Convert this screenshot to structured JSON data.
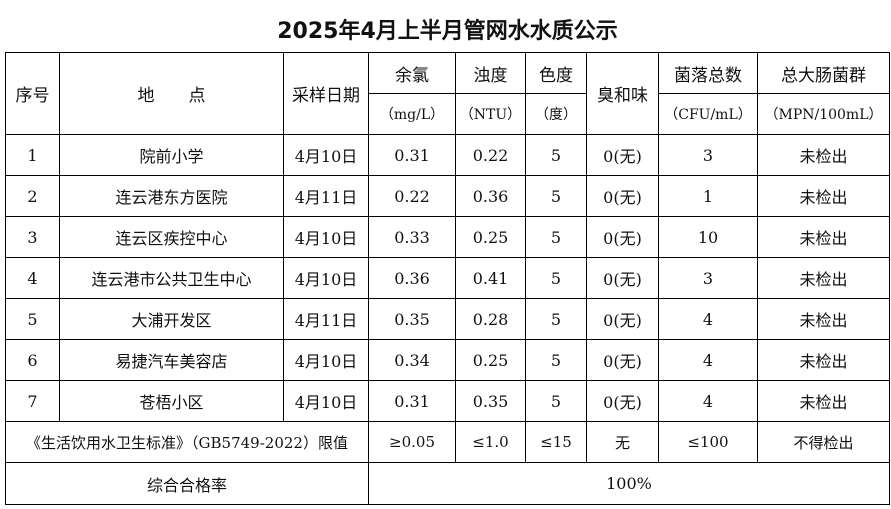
{
  "title": "2025年4月上半月管网水水质公示",
  "headers": {
    "seq": "序号",
    "location": "地　　点",
    "date": "采样日期",
    "chlorine": "余氯",
    "chlorine_unit": "（mg/L）",
    "turbidity": "浊度",
    "turbidity_unit": "（NTU）",
    "color": "色度",
    "color_unit": "（度）",
    "odor": "臭和味",
    "colony": "菌落总数",
    "colony_unit": "（CFU/mL）",
    "coliform": "总大肠菌群",
    "coliform_unit": "（MPN/100mL）"
  },
  "rows": [
    {
      "seq": "1",
      "location": "院前小学",
      "date": "4月10日",
      "chlorine": "0.31",
      "turbidity": "0.22",
      "color": "5",
      "odor": "0(无)",
      "colony": "3",
      "coliform": "未检出"
    },
    {
      "seq": "2",
      "location": "连云港东方医院",
      "date": "4月11日",
      "chlorine": "0.22",
      "turbidity": "0.36",
      "color": "5",
      "odor": "0(无)",
      "colony": "1",
      "coliform": "未检出"
    },
    {
      "seq": "3",
      "location": "连云区疾控中心",
      "date": "4月10日",
      "chlorine": "0.33",
      "turbidity": "0.25",
      "color": "5",
      "odor": "0(无)",
      "colony": "10",
      "coliform": "未检出"
    },
    {
      "seq": "4",
      "location": "连云港市公共卫生中心",
      "date": "4月10日",
      "chlorine": "0.36",
      "turbidity": "0.41",
      "color": "5",
      "odor": "0(无)",
      "colony": "3",
      "coliform": "未检出"
    },
    {
      "seq": "5",
      "location": "大浦开发区",
      "date": "4月11日",
      "chlorine": "0.35",
      "turbidity": "0.28",
      "color": "5",
      "odor": "0(无)",
      "colony": "4",
      "coliform": "未检出"
    },
    {
      "seq": "6",
      "location": "易捷汽车美容店",
      "date": "4月10日",
      "chlorine": "0.34",
      "turbidity": "0.25",
      "color": "5",
      "odor": "0(无)",
      "colony": "4",
      "coliform": "未检出"
    },
    {
      "seq": "7",
      "location": "苍梧小区",
      "date": "4月10日",
      "chlorine": "0.31",
      "turbidity": "0.35",
      "color": "5",
      "odor": "0(无)",
      "colony": "4",
      "coliform": "未检出"
    }
  ],
  "standard": {
    "label": "《生活饮用水卫生标准》（GB5749-2022）限值",
    "chlorine": "≥0.05",
    "turbidity": "≤1.0",
    "color": "≤15",
    "odor": "无",
    "colony": "≤100",
    "coliform": "不得检出"
  },
  "pass_rate": {
    "label": "综合合格率",
    "value": "100%"
  }
}
